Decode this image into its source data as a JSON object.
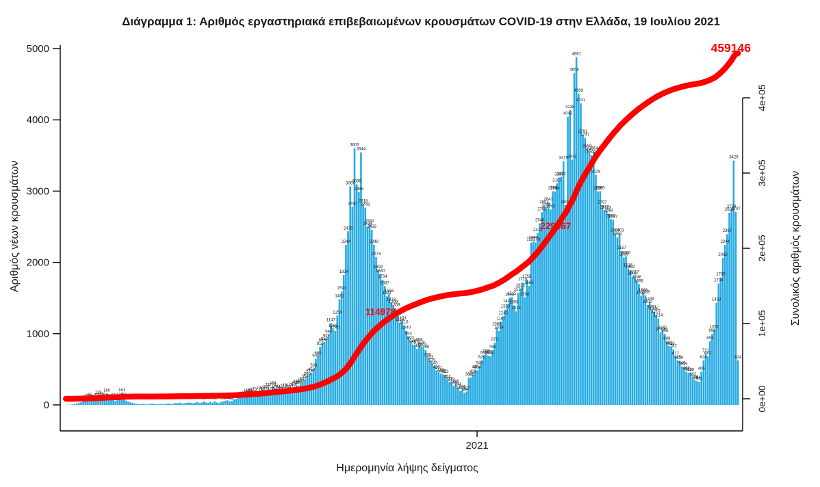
{
  "title": "Διάγραμμα 1: Αριθμός εργαστηριακά επιβεβαιωμένων κρουσμάτων COVID-19 στην Ελλάδα, 19 Ιουλίου 2021",
  "x_axis": {
    "label": "Ημερομηνία λήψης δείγματος",
    "tick_labels": [
      "2021"
    ]
  },
  "y_left": {
    "label": "Αριθμός νέων κρουσμάτων",
    "ticks": [
      0,
      1000,
      2000,
      3000,
      4000,
      5000
    ]
  },
  "y_right": {
    "label": "Συνολικός αριθμός κρουσμάτων",
    "ticks": [
      "0e+00",
      "1e+05",
      "2e+05",
      "3e+05",
      "4e+05"
    ]
  },
  "annotations": {
    "quarter_total": "114978",
    "half_total": "229467",
    "final_total": "459146"
  },
  "colors": {
    "bar": "#29ACE3",
    "line": "#FF0000",
    "bar_label": "#1a1a1a",
    "axis": "#000000"
  },
  "chart_data": {
    "type": "bar",
    "title": "Διάγραμμα 1: Αριθμός εργαστηριακά επιβεβαιωμένων κρουσμάτων COVID-19 στην Ελλάδα, 19 Ιουλίου 2021",
    "xlabel": "Ημερομηνία λήψης δείγματος",
    "ylabel_left": "Αριθμός νέων κρουσμάτων",
    "ylabel_right": "Συνολικός αριθμός κρουσμάτων",
    "ylim_left": [
      0,
      5000
    ],
    "ylim_right": [
      0,
      400000
    ],
    "x_range_note": "daily samples, early 2020 through 19 July 2021; single x tick labeled 2021",
    "series": [
      {
        "name": "daily_new_cases",
        "type": "bar",
        "values": [
          2,
          3,
          4,
          7,
          10,
          21,
          31,
          35,
          46,
          62,
          82,
          95,
          71,
          60,
          89,
          129,
          102,
          97,
          84,
          160,
          77,
          71,
          89,
          56,
          68,
          102,
          161,
          97,
          60,
          48,
          35,
          28,
          20,
          15,
          10,
          12,
          16,
          10,
          8,
          14,
          19,
          12,
          9,
          11,
          15,
          10,
          13,
          18,
          20,
          14,
          19,
          28,
          24,
          31,
          19,
          23,
          28,
          35,
          29,
          24,
          31,
          43,
          27,
          33,
          50,
          35,
          28,
          43,
          31,
          52,
          35,
          27,
          43,
          50,
          58,
          65,
          48,
          52,
          75,
          83,
          101,
          110,
          99,
          126,
          155,
          151,
          156,
          173,
          117,
          126,
          190,
          156,
          177,
          207,
          237,
          177,
          258,
          231,
          204,
          190,
          177,
          218,
          231,
          177,
          207,
          240,
          258,
          280,
          268,
          299,
          322,
          354,
          390,
          436,
          453,
          508,
          646,
          680,
          815,
          866,
          883,
          927,
          984,
          1147,
          1066,
          1040,
          1254,
          1481,
          1591,
          1824,
          2244,
          2435,
          3067,
          2780,
          3603,
          3096,
          2985,
          3544,
          2818,
          2768,
          2499,
          2532,
          2456,
          2248,
          2073,
          1892,
          1840,
          1754,
          1667,
          1524,
          1556,
          1433,
          1399,
          1359,
          1254,
          1154,
          1173,
          1116,
          1040,
          954,
          893,
          848,
          837,
          785,
          868,
          829,
          803,
          768,
          656,
          623,
          579,
          543,
          485,
          472,
          443,
          429,
          423,
          351,
          323,
          313,
          266,
          285,
          244,
          194,
          206,
          169,
          187,
          382,
          386,
          423,
          485,
          484,
          540,
          625,
          688,
          713,
          695,
          683,
          768,
          872,
          1088,
          1039,
          1167,
          1243,
          1339,
          1411,
          1503,
          1515,
          1396,
          1313,
          1572,
          1632,
          1719,
          1508,
          1758,
          1669,
          2277,
          2297,
          2278,
          2411,
          2546,
          2703,
          2802,
          2758,
          2841,
          2740,
          2998,
          2994,
          3107,
          3189,
          3202,
          3419,
          2804,
          4043,
          4138,
          3441,
          4658,
          4881,
          4369,
          4231,
          3791,
          3747,
          3590,
          3541,
          3502,
          3554,
          3229,
          2996,
          2999,
          2797,
          2732,
          2723,
          2684,
          2607,
          2597,
          2406,
          2350,
          2403,
          2157,
          2066,
          2086,
          1916,
          1892,
          1800,
          1817,
          1746,
          1696,
          1533,
          1566,
          1538,
          1400,
          1439,
          1331,
          1306,
          1267,
          1214,
          1019,
          1042,
          996,
          888,
          825,
          818,
          782,
          677,
          625,
          618,
          540,
          529,
          468,
          453,
          448,
          382,
          346,
          334,
          322,
          466,
          624,
          721,
          682,
          893,
          996,
          1051,
          1433,
          1704,
          1789,
          2062,
          2244,
          2397,
          2696,
          2739,
          3429,
          2707,
          624
        ]
      },
      {
        "name": "cumulative_cases",
        "type": "line",
        "derived": "cumulative sum of daily_new_cases, scaled to final total",
        "final_value": 459146,
        "milestones": [
          {
            "label": "114978",
            "at_fraction": 0.2504
          },
          {
            "label": "229467",
            "at_fraction": 0.4998
          },
          {
            "label": "459146",
            "at_fraction": 1.0
          }
        ]
      }
    ],
    "legend": "none",
    "grid": false
  }
}
